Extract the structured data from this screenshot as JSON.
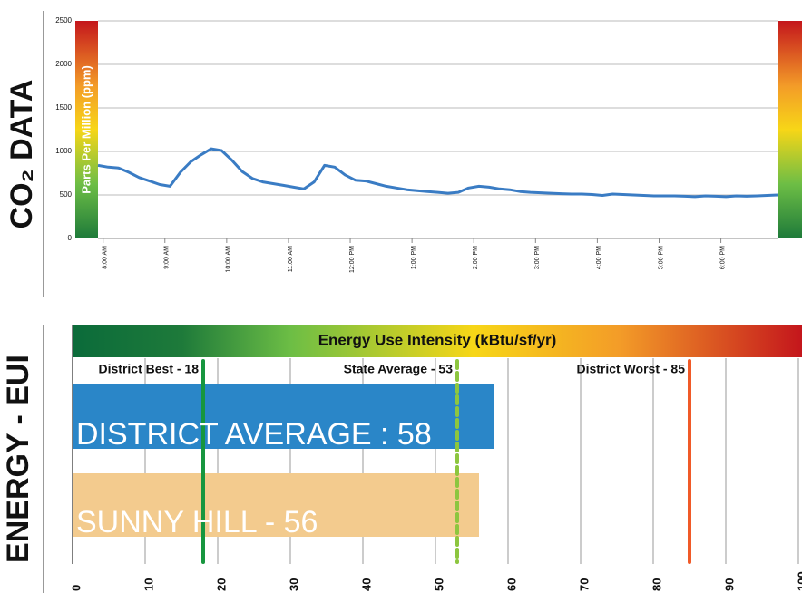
{
  "chart_data": [
    {
      "type": "line",
      "side_label": "CO₂ DATA",
      "ylabel": "Parts Per Million (ppm)",
      "xlim": [
        "07:55",
        "18:55"
      ],
      "xticks": [
        {
          "value": "08:00",
          "label": "8:00 AM"
        },
        {
          "value": "09:00",
          "label": "9:00 AM"
        },
        {
          "value": "10:00",
          "label": "10:00 AM"
        },
        {
          "value": "11:00",
          "label": "11:00 AM"
        },
        {
          "value": "12:00",
          "label": "12:00 PM"
        },
        {
          "value": "13:00",
          "label": "1:00 PM"
        },
        {
          "value": "14:00",
          "label": "2:00 PM"
        },
        {
          "value": "15:00",
          "label": "3:00 PM"
        },
        {
          "value": "16:00",
          "label": "4:00 PM"
        },
        {
          "value": "17:00",
          "label": "5:00 PM"
        },
        {
          "value": "18:00",
          "label": "6:00 PM"
        }
      ],
      "ylim": [
        0,
        2500
      ],
      "yticks": [
        0,
        500,
        1000,
        1500,
        2000,
        2500
      ],
      "grid": true,
      "x": [
        "07:55",
        "08:05",
        "08:15",
        "08:25",
        "08:35",
        "08:45",
        "08:55",
        "09:05",
        "09:15",
        "09:25",
        "09:35",
        "09:45",
        "09:55",
        "10:05",
        "10:15",
        "10:25",
        "10:35",
        "10:45",
        "10:55",
        "11:05",
        "11:15",
        "11:25",
        "11:35",
        "11:45",
        "11:55",
        "12:05",
        "12:15",
        "12:25",
        "12:35",
        "12:45",
        "12:55",
        "13:05",
        "13:15",
        "13:25",
        "13:35",
        "13:45",
        "13:55",
        "14:05",
        "14:15",
        "14:25",
        "14:35",
        "14:45",
        "14:55",
        "15:05",
        "15:15",
        "15:25",
        "15:35",
        "15:45",
        "15:55",
        "16:05",
        "16:15",
        "16:25",
        "16:35",
        "16:45",
        "16:55",
        "17:05",
        "17:15",
        "17:25",
        "17:35",
        "17:45",
        "17:55",
        "18:05",
        "18:15",
        "18:25",
        "18:35",
        "18:45",
        "18:55"
      ],
      "series": [
        {
          "color": "#3a7cc4",
          "values": [
            840,
            820,
            810,
            760,
            700,
            660,
            620,
            600,
            760,
            880,
            960,
            1030,
            1010,
            900,
            770,
            690,
            650,
            630,
            610,
            590,
            570,
            650,
            840,
            820,
            730,
            670,
            660,
            630,
            600,
            580,
            560,
            550,
            540,
            530,
            520,
            530,
            580,
            600,
            590,
            570,
            560,
            540,
            530,
            525,
            520,
            515,
            510,
            510,
            505,
            495,
            510,
            505,
            500,
            495,
            490,
            490,
            490,
            485,
            480,
            490,
            485,
            480,
            490,
            485,
            490,
            495,
            500
          ]
        }
      ]
    },
    {
      "type": "hbar",
      "side_label": "ENERGY - EUI",
      "title": "Energy Use Intensity (kBtu/sf/yr)",
      "xlim": [
        0,
        100
      ],
      "xticks": [
        0,
        10,
        20,
        30,
        40,
        50,
        60,
        70,
        80,
        90,
        100
      ],
      "grid": true,
      "values": [
        58,
        56
      ],
      "value_labels": [
        "DISTRICT AVERAGE : 58",
        "SUNNY HILL - 56"
      ],
      "colors": [
        "#2a86c8",
        "#f3cb8e"
      ],
      "reference_lines": [
        {
          "label": "District Best - 18",
          "value": 18,
          "color": "#17963f",
          "dashed": false
        },
        {
          "label": "State Average - 53",
          "value": 53,
          "color": "#8dc63f",
          "dashed": true
        },
        {
          "label": "District Worst - 85",
          "value": 85,
          "color": "#f05a28",
          "dashed": false
        }
      ]
    }
  ]
}
